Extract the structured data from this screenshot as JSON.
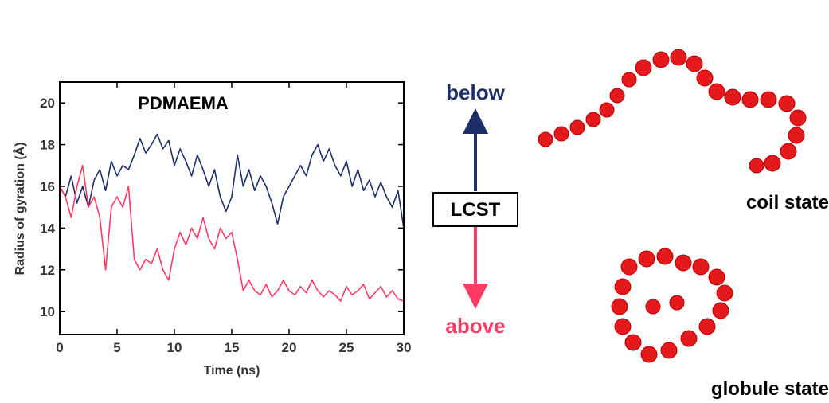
{
  "chart_data": {
    "type": "line",
    "title": "PDMAEMA",
    "x_label": "Time (ns)",
    "y_label": "Radius of gyration (Å)",
    "x": [
      0,
      0.5,
      1,
      1.5,
      2,
      2.5,
      3,
      3.5,
      4,
      4.5,
      5,
      5.5,
      6,
      6.5,
      7,
      7.5,
      8,
      8.5,
      9,
      9.5,
      10,
      10.5,
      11,
      11.5,
      12,
      12.5,
      13,
      13.5,
      14,
      14.5,
      15,
      15.5,
      16,
      16.5,
      17,
      17.5,
      18,
      18.5,
      19,
      19.5,
      20,
      20.5,
      21,
      21.5,
      22,
      22.5,
      23,
      23.5,
      24,
      24.5,
      25,
      25.5,
      26,
      26.5,
      27,
      27.5,
      28,
      28.5,
      29,
      29.5,
      30
    ],
    "series": [
      {
        "color": "#1c2f6b",
        "values": [
          16.0,
          15.5,
          16.5,
          15.2,
          16.0,
          15.0,
          16.3,
          16.8,
          15.8,
          17.2,
          16.5,
          17.0,
          16.8,
          17.5,
          18.3,
          17.6,
          18.0,
          18.5,
          17.8,
          18.2,
          17.0,
          17.8,
          17.2,
          16.5,
          17.5,
          16.8,
          16.0,
          16.8,
          15.5,
          14.8,
          15.5,
          17.5,
          16.0,
          16.8,
          15.8,
          16.5,
          16.0,
          15.2,
          14.2,
          15.5,
          16.0,
          16.5,
          17.0,
          16.5,
          17.5,
          18.0,
          17.2,
          17.8,
          17.0,
          16.5,
          17.2,
          16.0,
          16.8,
          15.8,
          16.3,
          15.5,
          16.2,
          15.5,
          15.0,
          15.8,
          14.0
        ]
      },
      {
        "color": "#ff3a64",
        "values": [
          16.0,
          15.5,
          14.5,
          16.0,
          17.0,
          15.0,
          15.5,
          14.5,
          12.0,
          15.0,
          15.5,
          15.0,
          16.0,
          12.5,
          12.0,
          12.5,
          12.3,
          13.0,
          12.0,
          11.5,
          13.0,
          13.8,
          13.2,
          14.0,
          13.5,
          14.5,
          13.5,
          13.0,
          14.0,
          13.5,
          13.8,
          12.5,
          11.0,
          11.5,
          11.0,
          10.8,
          11.3,
          10.7,
          11.0,
          11.5,
          11.0,
          10.8,
          11.2,
          10.9,
          11.5,
          11.0,
          10.7,
          11.0,
          10.8,
          10.5,
          11.2,
          10.8,
          11.0,
          11.3,
          10.6,
          10.9,
          11.2,
          10.7,
          11.0,
          10.6,
          10.5
        ]
      }
    ],
    "xlim": [
      0,
      30
    ],
    "xticks": [
      0,
      5,
      10,
      15,
      20,
      25,
      30
    ],
    "ylim": [
      8.9,
      21
    ],
    "yticks": [
      10,
      12,
      14,
      16,
      18,
      20
    ]
  },
  "diagram": {
    "below": "below",
    "lcst": "LCST",
    "above": "above",
    "coil": "coil state",
    "globule": "globule state"
  }
}
